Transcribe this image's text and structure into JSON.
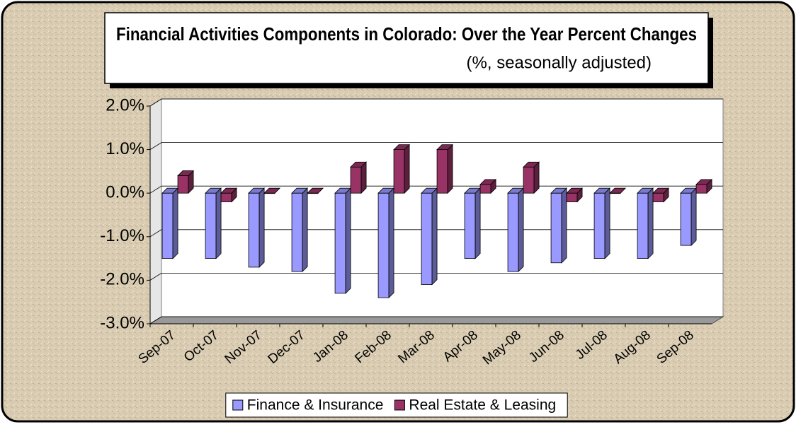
{
  "chart_data": {
    "type": "bar",
    "title": "Financial Activities Components in Colorado:  Over the Year Percent Changes",
    "subtitle": "(%, seasonally adjusted)",
    "categories": [
      "Sep-07",
      "Oct-07",
      "Nov-07",
      "Dec-07",
      "Jan-08",
      "Feb-08",
      "Mar-08",
      "Apr-08",
      "May-08",
      "Jun-08",
      "Jul-08",
      "Aug-08",
      "Sep-08"
    ],
    "series": [
      {
        "name": "Finance & Insurance",
        "color": "#9999ff",
        "values": [
          -1.5,
          -1.5,
          -1.7,
          -1.8,
          -2.3,
          -2.4,
          -2.1,
          -1.5,
          -1.8,
          -1.6,
          -1.5,
          -1.5,
          -1.2
        ]
      },
      {
        "name": "Real Estate & Leasing",
        "color": "#993366",
        "values": [
          0.4,
          -0.2,
          0.0,
          0.0,
          0.6,
          1.0,
          1.0,
          0.2,
          0.6,
          -0.2,
          0.0,
          -0.2,
          0.2
        ]
      }
    ],
    "ylim": [
      -3,
      2
    ],
    "yticks": [
      {
        "value": -3,
        "label": "-3.0%"
      },
      {
        "value": -2,
        "label": "-2.0%"
      },
      {
        "value": -1,
        "label": "-1.0%"
      },
      {
        "value": 0,
        "label": "0.0%"
      },
      {
        "value": 1,
        "label": "1.0%"
      },
      {
        "value": 2,
        "label": "2.0%"
      }
    ],
    "grid": true,
    "legend": "bottom"
  }
}
